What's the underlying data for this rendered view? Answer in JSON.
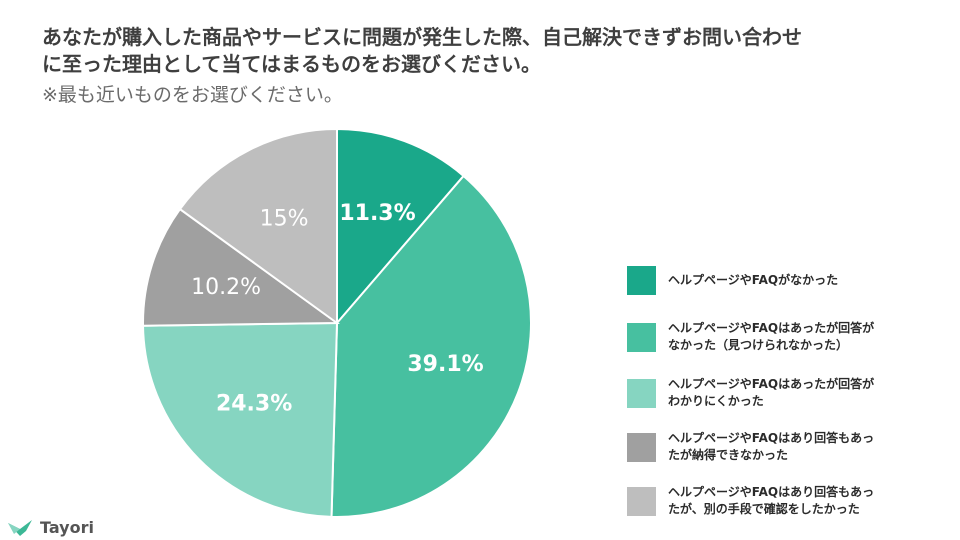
{
  "title": {
    "line1": "あなたが購入した商品やサービスに問題が発生した際、自己解決できずお問い合わせ",
    "line2": "に至った理由として当てはまるものをお選びください。"
  },
  "subtitle": "※最も近いものをお選びください。",
  "chart_data": {
    "type": "pie",
    "start_angle_deg": 0,
    "direction": "clockwise",
    "slices": [
      {
        "label": "ヘルプページやFAQがなかった",
        "value": 11.3,
        "display": "11.3%",
        "color": "#1aa88a",
        "label_color": "#ffffff",
        "label_bold": true
      },
      {
        "label": "ヘルプページやFAQはあったが回答がなかった（見つけられなかった）",
        "value": 39.1,
        "display": "39.1%",
        "color": "#47c0a0",
        "label_color": "#ffffff",
        "label_bold": true
      },
      {
        "label": "ヘルプページやFAQはあったが回答がわかりにくかった",
        "value": 24.3,
        "display": "24.3%",
        "color": "#86d5c1",
        "label_color": "#ffffff",
        "label_bold": true
      },
      {
        "label": "ヘルプページやFAQはあり回答もあったが納得できなかった",
        "value": 10.2,
        "display": "10.2%",
        "color": "#a0a0a0",
        "label_color": "#ffffff",
        "label_bold": false
      },
      {
        "label": "ヘルプページやFAQはあり回答もあったが、別の手段で確認をしたかった",
        "value": 15,
        "display": "15%",
        "color": "#bebebe",
        "label_color": "#ffffff",
        "label_bold": false
      }
    ]
  },
  "legend": [
    {
      "line1": "ヘルプページやFAQがなかった",
      "line2": "",
      "color": "#1aa88a"
    },
    {
      "line1": "ヘルプページやFAQはあったが回答が",
      "line2": "なかった（見つけられなかった）",
      "color": "#47c0a0"
    },
    {
      "line1": "ヘルプページやFAQはあったが回答が",
      "line2": "わかりにくかった",
      "color": "#86d5c1"
    },
    {
      "line1": "ヘルプページやFAQはあり回答もあっ",
      "line2": "たが納得できなかった",
      "color": "#a0a0a0"
    },
    {
      "line1": "ヘルプページやFAQはあり回答もあっ",
      "line2": "たが、別の手段で確認をしたかった",
      "color": "#bebebe"
    }
  ],
  "brand": {
    "name": "Tayori",
    "icon": "bird-logo-icon",
    "color": "#3cb896"
  }
}
